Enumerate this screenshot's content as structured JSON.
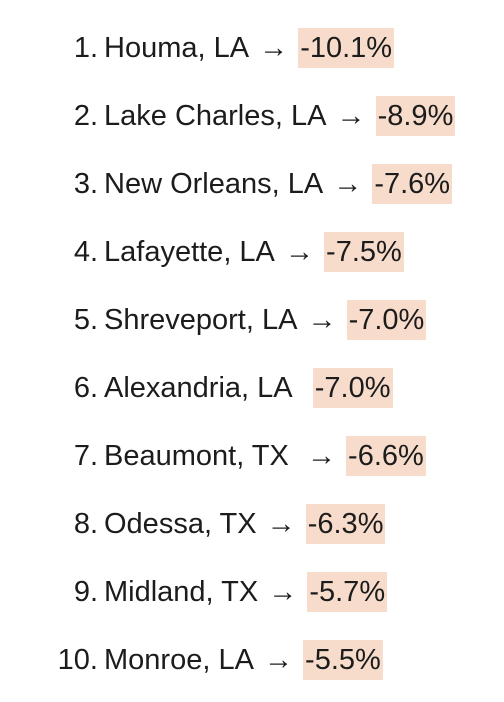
{
  "list": {
    "items": [
      {
        "num": "1.",
        "city": "Houma, LA",
        "arrow": " → ",
        "pct": "-10.1%"
      },
      {
        "num": "2.",
        "city": "Lake Charles, LA",
        "arrow": " → ",
        "pct": "-8.9%"
      },
      {
        "num": "3.",
        "city": "New Orleans, LA",
        "arrow": " → ",
        "pct": "-7.6%"
      },
      {
        "num": "4.",
        "city": "Lafayette, LA",
        "arrow": " → ",
        "pct": "-7.5%"
      },
      {
        "num": "5.",
        "city": "Shreveport, LA",
        "arrow": " → ",
        "pct": "-7.0%"
      },
      {
        "num": "6.",
        "city": "Alexandria, LA",
        "arrow": "  ",
        "pct": "-7.0%"
      },
      {
        "num": "7.",
        "city": "Beaumont, TX",
        "arrow": "  → ",
        "pct": "-6.6%"
      },
      {
        "num": "8.",
        "city": "Odessa, TX",
        "arrow": " → ",
        "pct": "-6.3%"
      },
      {
        "num": "9.",
        "city": "Midland, TX",
        "arrow": " → ",
        "pct": "-5.7%"
      },
      {
        "num": "10.",
        "city": "Monroe, LA",
        "arrow": " → ",
        "pct": "-5.5%"
      }
    ]
  },
  "colors": {
    "highlight": "#f8dccb",
    "text": "#1c1c1c"
  }
}
